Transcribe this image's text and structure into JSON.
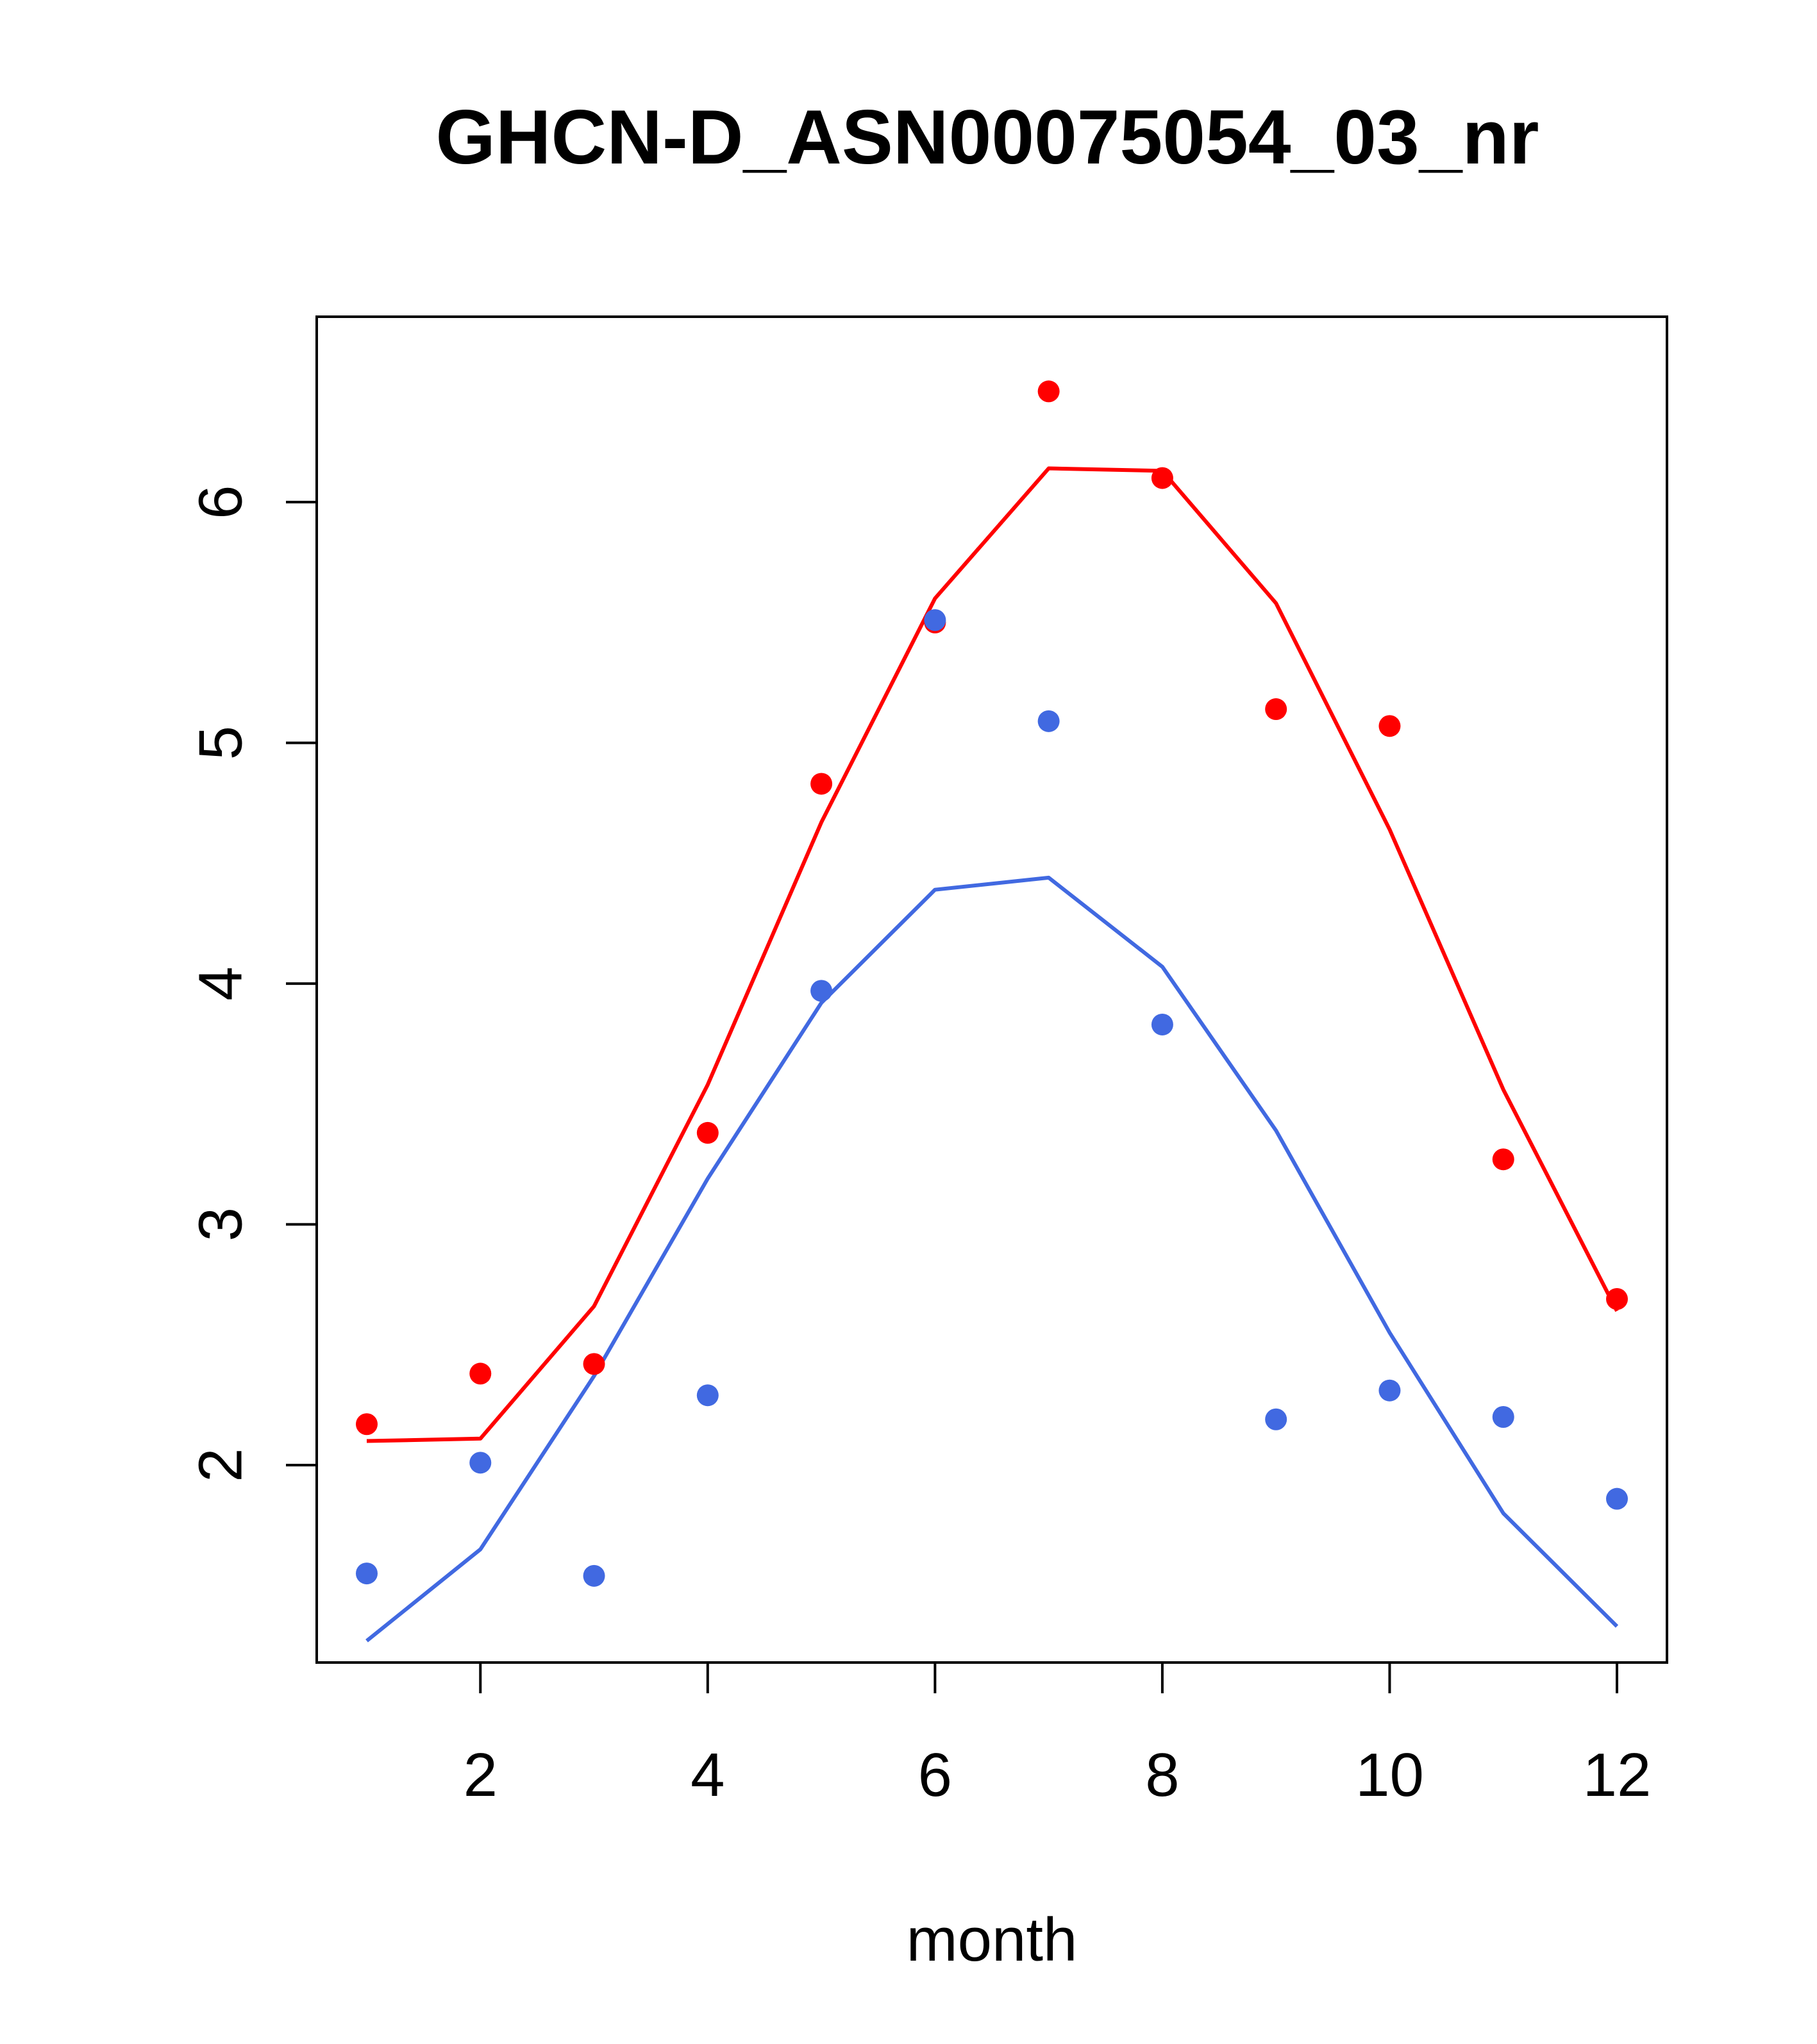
{
  "chart_data": {
    "type": "line",
    "title": "GHCN-D_ASN00075054_03_nr",
    "xlabel": "month",
    "ylabel": "",
    "xlim": [
      0.56,
      12.44
    ],
    "ylim": [
      1.18,
      6.77
    ],
    "xticks": [
      2,
      4,
      6,
      8,
      10,
      12
    ],
    "yticks": [
      2,
      3,
      4,
      5,
      6
    ],
    "grid": false,
    "colors": {
      "red": "#ff0000",
      "blue": "#4169e1"
    },
    "x": [
      1,
      2,
      3,
      4,
      5,
      6,
      7,
      8,
      9,
      10,
      11,
      12
    ],
    "series": [
      {
        "color": "#ff0000",
        "line": [
          2.1,
          2.11,
          2.66,
          3.58,
          4.67,
          5.6,
          6.14,
          6.13,
          5.58,
          4.64,
          3.56,
          2.64
        ],
        "points": [
          2.17,
          2.38,
          2.42,
          3.38,
          4.83,
          5.5,
          6.46,
          6.1,
          5.14,
          5.07,
          3.27,
          2.69
        ]
      },
      {
        "color": "#4169e1",
        "line": [
          1.27,
          1.65,
          2.37,
          3.19,
          3.92,
          4.39,
          4.44,
          4.07,
          3.39,
          2.55,
          1.8,
          1.33
        ],
        "points": [
          1.55,
          2.01,
          1.54,
          2.29,
          3.97,
          5.51,
          5.09,
          3.83,
          2.19,
          2.31,
          2.2,
          1.86
        ]
      }
    ]
  }
}
